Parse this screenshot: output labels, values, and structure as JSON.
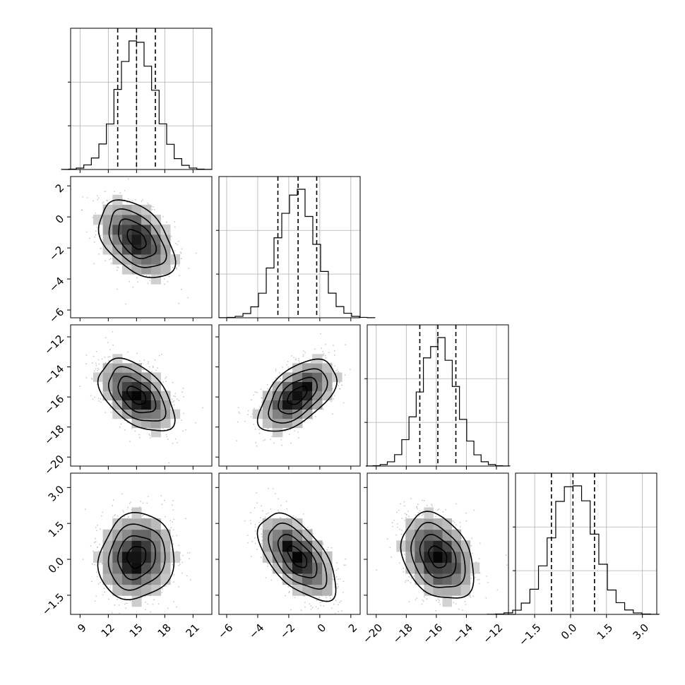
{
  "chart_data": {
    "type": "corner",
    "params": [
      {
        "id": "p0",
        "range": [
          8,
          23
        ],
        "ticks": [
          9,
          12,
          15,
          18,
          21
        ],
        "tick_labels": [
          "9",
          "12",
          "15",
          "18",
          "21"
        ],
        "quantiles": [
          13,
          15,
          17
        ],
        "hist_peak": 15.3
      },
      {
        "id": "p1",
        "range": [
          -6.5,
          2.6
        ],
        "ticks": [
          -6,
          -4,
          -2,
          0,
          2
        ],
        "tick_labels": [
          "−6",
          "−4",
          "−2",
          "0",
          "2"
        ],
        "quantiles": [
          -2.7,
          -1.4,
          -0.2
        ],
        "hist_peak": -1.3
      },
      {
        "id": "p2",
        "range": [
          -20.6,
          -11.2
        ],
        "ticks": [
          -20,
          -18,
          -16,
          -14,
          -12
        ],
        "tick_labels": [
          "−20",
          "−18",
          "−16",
          "−14",
          "−12"
        ],
        "quantiles": [
          -17.1,
          -15.9,
          -14.7
        ],
        "hist_peak": -15.9
      },
      {
        "id": "p3",
        "range": [
          -2.3,
          3.6
        ],
        "ticks": [
          -1.5,
          0.0,
          1.5,
          3.0
        ],
        "tick_labels": [
          "−1.5",
          "0.0",
          "1.5",
          "3.0"
        ],
        "quantiles": [
          -0.8,
          0.1,
          1.0
        ],
        "hist_peak": 0.2
      }
    ],
    "correlations": {
      "0-1": -0.45,
      "0-2": -0.5,
      "1-2": 0.55,
      "0-3": 0.1,
      "1-3": -0.6,
      "2-3": -0.3
    },
    "hist_bins": 20,
    "contour_levels": [
      "0.5 sigma",
      "1 sigma",
      "1.5 sigma",
      "2 sigma"
    ],
    "grid": true,
    "quantile_line_style": "dashed",
    "colors": {
      "line": "#000000",
      "scatter": "#b0b0b0",
      "grid": "#b0b0b0"
    }
  }
}
